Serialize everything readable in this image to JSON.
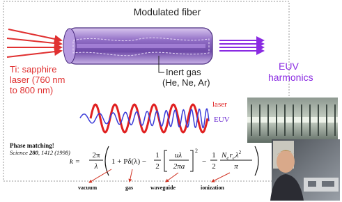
{
  "title": "Modulated fiber",
  "input_label": [
    "Ti: sapphire",
    "laser (760 nm",
    "to 800 nm)"
  ],
  "gas_label": [
    "Inert gas",
    "(He, Ne, Ar)"
  ],
  "output_label": [
    "EUV",
    "harmonics"
  ],
  "wave_legend": {
    "laser": "laser",
    "euv": "EUV"
  },
  "citation": {
    "headline": "Phase matching!",
    "journal": "Science",
    "volume": "280",
    "pages": ", 1412 (1998)"
  },
  "equation": [
    "k =",
    "2π",
    "λ",
    "1 + Pδ(λ) −",
    "1",
    "2",
    "uλ",
    "2πa",
    "2",
    "−",
    "1",
    "2",
    "N",
    "e",
    "r",
    "e",
    "λ",
    "2",
    "π"
  ],
  "term_labels": [
    "vacuum",
    "gas",
    "waveguide",
    "ionization"
  ]
}
